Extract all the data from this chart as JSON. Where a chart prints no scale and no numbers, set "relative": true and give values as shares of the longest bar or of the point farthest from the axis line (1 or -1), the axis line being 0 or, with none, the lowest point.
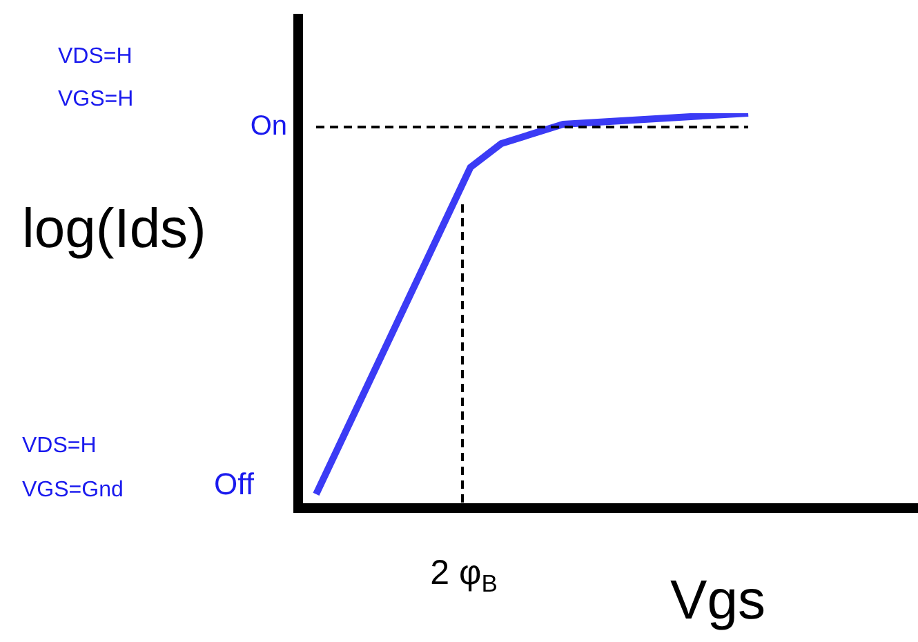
{
  "chart_data": {
    "type": "line",
    "relative": true,
    "xlabel": "Vgs",
    "ylabel": "log(Ids)",
    "categories": [
      null,
      null,
      null,
      null,
      null,
      null,
      null,
      null,
      null,
      null,
      null,
      null,
      null,
      null,
      null
    ],
    "legend": false,
    "marker": "none",
    "line_style": "solid",
    "series": [
      {
        "color": "#3b3bf5",
        "values": [
          0.035,
          null,
          null,
          null,
          null,
          0.863,
          0.923,
          null,
          0.972,
          null,
          null,
          null,
          null,
          null,
          1
        ]
      }
    ],
    "ref_lines": [
      {
        "axis": "y",
        "value": 0.965,
        "label": "On",
        "color": "#000000",
        "line_style": "dashed"
      }
    ],
    "annotations": [
      "VDS=H",
      "VGS=H",
      "VDS=H",
      "VGS=Gnd",
      "Off",
      "2 φ$_{B}$"
    ]
  }
}
